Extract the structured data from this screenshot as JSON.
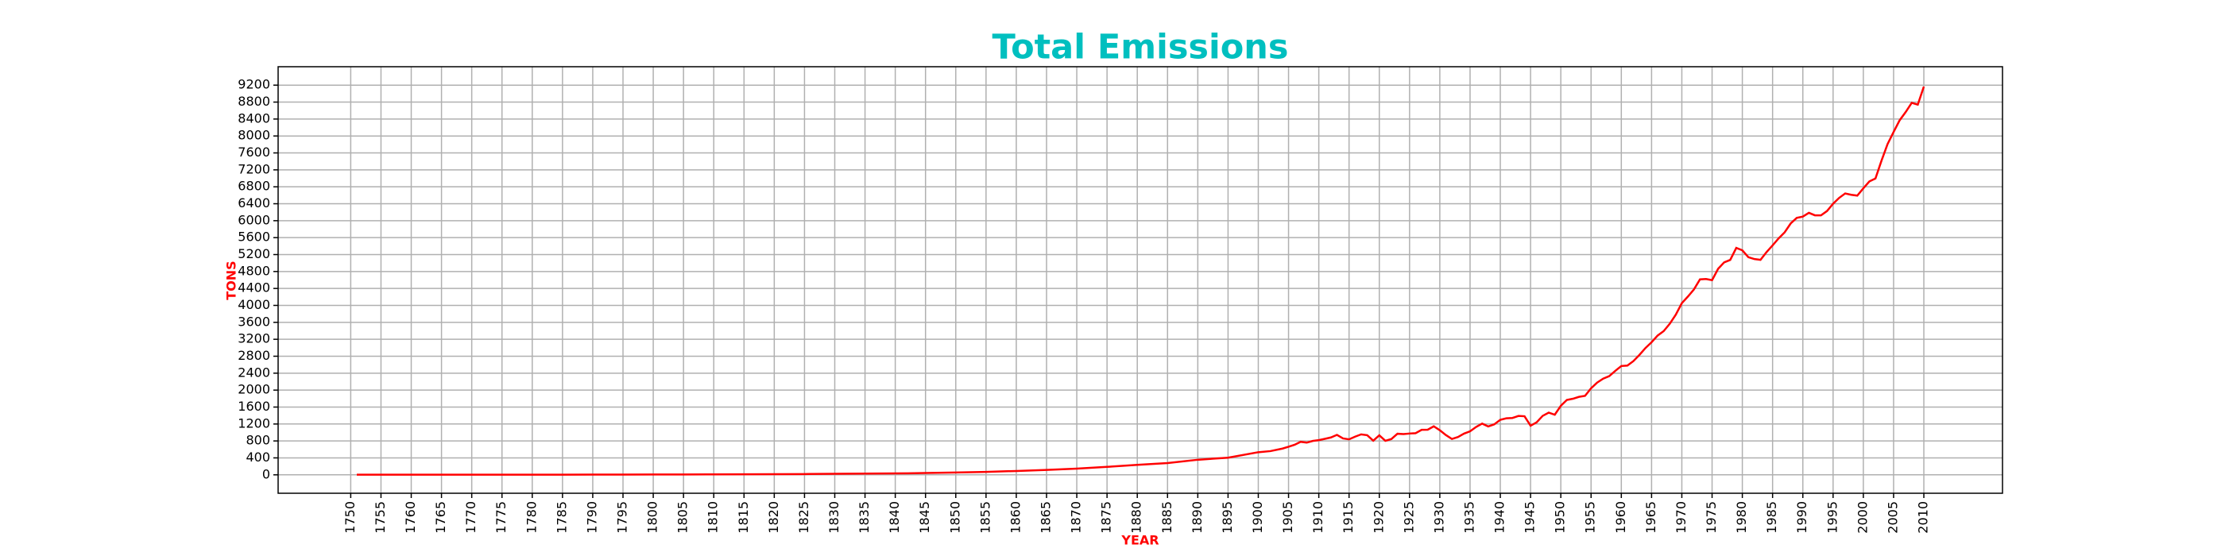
{
  "chart_data": {
    "type": "line",
    "title": "Total Emissions",
    "x_label": "YEAR",
    "y_label": "TONS",
    "x": [
      1751,
      1755,
      1760,
      1765,
      1770,
      1775,
      1780,
      1785,
      1790,
      1795,
      1800,
      1805,
      1810,
      1815,
      1820,
      1825,
      1830,
      1835,
      1840,
      1845,
      1850,
      1855,
      1860,
      1865,
      1870,
      1875,
      1880,
      1885,
      1890,
      1895,
      1900,
      1902,
      1904,
      1905,
      1906,
      1907,
      1908,
      1909,
      1910,
      1911,
      1912,
      1913,
      1914,
      1915,
      1916,
      1917,
      1918,
      1919,
      1920,
      1921,
      1922,
      1923,
      1924,
      1925,
      1926,
      1927,
      1928,
      1929,
      1930,
      1931,
      1932,
      1933,
      1934,
      1935,
      1936,
      1937,
      1938,
      1939,
      1940,
      1941,
      1942,
      1943,
      1944,
      1945,
      1946,
      1947,
      1948,
      1949,
      1950,
      1951,
      1952,
      1953,
      1954,
      1955,
      1956,
      1957,
      1958,
      1959,
      1960,
      1961,
      1962,
      1963,
      1964,
      1965,
      1966,
      1967,
      1968,
      1969,
      1970,
      1971,
      1972,
      1973,
      1974,
      1975,
      1976,
      1977,
      1978,
      1979,
      1980,
      1981,
      1982,
      1983,
      1984,
      1985,
      1986,
      1987,
      1988,
      1989,
      1990,
      1991,
      1992,
      1993,
      1994,
      1995,
      1996,
      1997,
      1998,
      1999,
      2000,
      2001,
      2002,
      2003,
      2004,
      2005,
      2006,
      2007,
      2008,
      2009,
      2010
    ],
    "values": [
      3,
      3,
      3,
      3,
      3,
      3,
      4,
      4,
      5,
      6,
      8,
      9,
      10,
      12,
      14,
      18,
      24,
      28,
      33,
      42,
      54,
      70,
      91,
      116,
      147,
      188,
      236,
      277,
      356,
      405,
      534,
      560,
      620,
      663,
      710,
      780,
      760,
      800,
      819,
      850,
      882,
      943,
      860,
      838,
      901,
      955,
      936,
      806,
      932,
      803,
      845,
      970,
      963,
      975,
      983,
      1062,
      1065,
      1145,
      1053,
      940,
      847,
      893,
      973,
      1027,
      1130,
      1209,
      1142,
      1192,
      1299,
      1334,
      1342,
      1391,
      1383,
      1160,
      1238,
      1392,
      1469,
      1419,
      1630,
      1768,
      1796,
      1841,
      1865,
      2043,
      2177,
      2270,
      2330,
      2454,
      2569,
      2580,
      2686,
      2833,
      2995,
      3130,
      3288,
      3393,
      3566,
      3780,
      4053,
      4208,
      4376,
      4614,
      4623,
      4596,
      4864,
      5016,
      5074,
      5357,
      5301,
      5138,
      5094,
      5075,
      5258,
      5417,
      5583,
      5725,
      5936,
      6066,
      6096,
      6186,
      6127,
      6125,
      6228,
      6400,
      6538,
      6643,
      6611,
      6592,
      6765,
      6927,
      6996,
      7416,
      7807,
      8093,
      8370,
      8566,
      8783,
      8740,
      9167
    ],
    "color": "#ff0000",
    "title_color": "#00bfbf",
    "label_color": "#ff0000",
    "xlim": [
      1738,
      2023
    ],
    "ylim": [
      -435,
      9635
    ],
    "xticks": [
      1750,
      1755,
      1760,
      1765,
      1770,
      1775,
      1780,
      1785,
      1790,
      1795,
      1800,
      1805,
      1810,
      1815,
      1820,
      1825,
      1830,
      1835,
      1840,
      1845,
      1850,
      1855,
      1860,
      1865,
      1870,
      1875,
      1880,
      1885,
      1890,
      1895,
      1900,
      1905,
      1910,
      1915,
      1920,
      1925,
      1930,
      1935,
      1940,
      1945,
      1950,
      1955,
      1960,
      1965,
      1970,
      1975,
      1980,
      1985,
      1990,
      1995,
      2000,
      2005,
      2010
    ],
    "yticks": [
      0,
      400,
      800,
      1200,
      1600,
      2000,
      2400,
      2800,
      3200,
      3600,
      4000,
      4400,
      4800,
      5200,
      5600,
      6000,
      6400,
      6800,
      7200,
      7600,
      8000,
      8400,
      8800,
      9200
    ],
    "grid": true
  }
}
